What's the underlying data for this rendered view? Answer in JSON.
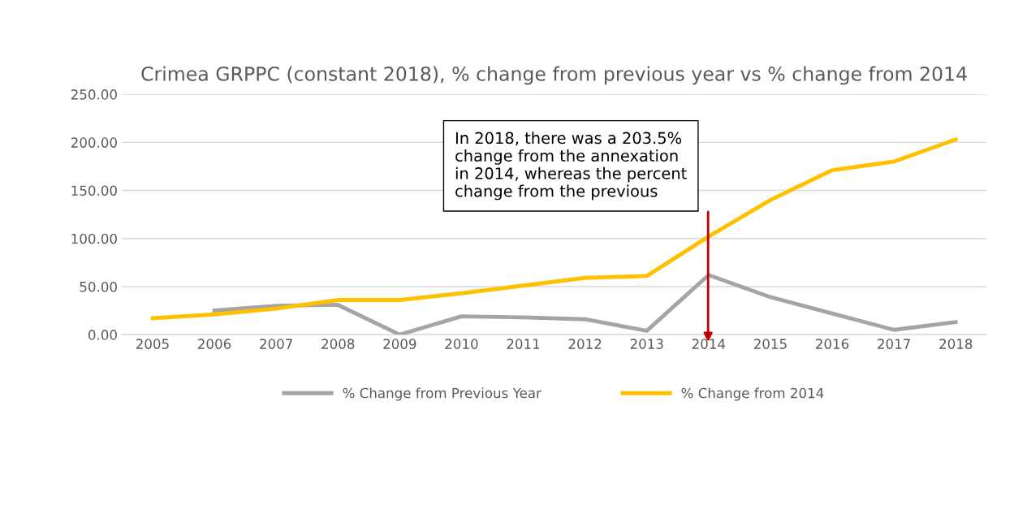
{
  "chart_data": {
    "type": "line",
    "title": "Crimea GRPPC (constant 2018), % change from previous year vs % change from 2014",
    "categories": [
      "2005",
      "2006",
      "2007",
      "2008",
      "2009",
      "2010",
      "2011",
      "2012",
      "2013",
      "2014",
      "2015",
      "2016",
      "2017",
      "2018"
    ],
    "series": [
      {
        "name": "% Change from Previous Year",
        "color": "#a5a5a5",
        "values": [
          null,
          25,
          30,
          31,
          0,
          19,
          18,
          16,
          4,
          62,
          39,
          22,
          5,
          13
        ]
      },
      {
        "name": "% Change from 2014",
        "color": "#ffc000",
        "values": [
          17,
          21,
          27,
          36,
          36,
          43,
          51,
          59,
          61,
          102,
          140,
          171,
          180,
          203
        ]
      }
    ],
    "ylim": [
      0,
      250
    ],
    "yticks": [
      {
        "value": 0,
        "label": "0.00"
      },
      {
        "value": 50,
        "label": "50.00"
      },
      {
        "value": 100,
        "label": "100.00"
      },
      {
        "value": 150,
        "label": "150.00"
      },
      {
        "value": 200,
        "label": "200.00"
      },
      {
        "value": 250,
        "label": "250.00"
      }
    ],
    "grid": "y",
    "legend": "bottom",
    "marker": "none",
    "line_style": "solid",
    "annotations": [
      "In 2018, there was a 203.5%\nchange from the annexation\nin 2014, whereas the percent\nchange from the previous"
    ]
  }
}
